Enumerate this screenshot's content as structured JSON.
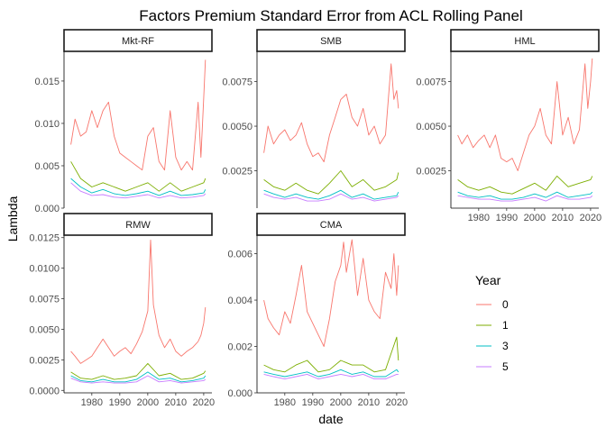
{
  "chart_data": {
    "type": "line",
    "title": "Factors Premium Standard Error from ACL Rolling Panel",
    "xlabel": "date",
    "ylabel": "Lambda",
    "x_range": [
      1972,
      2021
    ],
    "x_ticks": [
      1980,
      1990,
      2000,
      2010,
      2020
    ],
    "x_tick_labels": [
      "1980",
      "1990",
      "2000",
      "2010",
      "2020"
    ],
    "grid": false,
    "facet_scales": "free_y",
    "legend": {
      "title": "Year",
      "position": "right",
      "entries": [
        {
          "label": "0",
          "color": "#F8766D"
        },
        {
          "label": "1",
          "color": "#7CAE00"
        },
        {
          "label": "3",
          "color": "#00BFC4"
        },
        {
          "label": "5",
          "color": "#C77CFF"
        }
      ]
    },
    "panels": [
      {
        "name": "Mkt-RF",
        "ylim": [
          0.0,
          0.0185
        ],
        "y_ticks": [
          0.0,
          0.005,
          0.01,
          0.015
        ],
        "y_tick_labels": [
          "0.000",
          "0.005",
          "0.010",
          "0.015"
        ],
        "series": [
          {
            "name": "0",
            "x": [
              1972.5,
              1974,
              1976,
              1978,
              1980,
              1982,
              1984,
              1986,
              1988,
              1990,
              1992,
              1994,
              1996,
              1998,
              2000,
              2002,
              2004,
              2006,
              2008,
              2010,
              2012,
              2014,
              2016,
              2018,
              2019,
              2020,
              2020.6
            ],
            "y": [
              0.0075,
              0.0105,
              0.0085,
              0.009,
              0.0115,
              0.0095,
              0.0115,
              0.0125,
              0.0085,
              0.0065,
              0.006,
              0.0055,
              0.005,
              0.0045,
              0.0085,
              0.0095,
              0.0055,
              0.0045,
              0.0115,
              0.006,
              0.0045,
              0.0055,
              0.0045,
              0.0125,
              0.006,
              0.013,
              0.0175
            ]
          },
          {
            "name": "1",
            "x": [
              1972.5,
              1976,
              1980,
              1984,
              1988,
              1992,
              1996,
              2000,
              2004,
              2008,
              2012,
              2016,
              2020,
              2020.6
            ],
            "y": [
              0.0055,
              0.0035,
              0.0025,
              0.003,
              0.0025,
              0.002,
              0.0025,
              0.003,
              0.002,
              0.003,
              0.002,
              0.0025,
              0.003,
              0.0035
            ]
          },
          {
            "name": "3",
            "x": [
              1972.5,
              1976,
              1980,
              1984,
              1988,
              1992,
              1996,
              2000,
              2004,
              2008,
              2012,
              2016,
              2020,
              2020.6
            ],
            "y": [
              0.0035,
              0.0025,
              0.0018,
              0.0022,
              0.0017,
              0.0015,
              0.0017,
              0.002,
              0.0015,
              0.002,
              0.0015,
              0.0016,
              0.0018,
              0.0022
            ]
          },
          {
            "name": "5",
            "x": [
              1972.5,
              1976,
              1980,
              1984,
              1988,
              1992,
              1996,
              2000,
              2004,
              2008,
              2012,
              2016,
              2020,
              2020.6
            ],
            "y": [
              0.003,
              0.002,
              0.0015,
              0.0016,
              0.0013,
              0.0012,
              0.0014,
              0.0016,
              0.0012,
              0.0015,
              0.0012,
              0.0013,
              0.0015,
              0.0017
            ]
          }
        ]
      },
      {
        "name": "SMB",
        "ylim": [
          0.0004,
          0.0092
        ],
        "y_ticks": [
          0.0025,
          0.005,
          0.0075
        ],
        "y_tick_labels": [
          "0.0025",
          "0.0050",
          "0.0075"
        ],
        "series": [
          {
            "name": "0",
            "x": [
              1972.5,
              1974,
              1976,
              1978,
              1980,
              1982,
              1984,
              1986,
              1988,
              1990,
              1992,
              1994,
              1996,
              1998,
              2000,
              2002,
              2004,
              2006,
              2008,
              2010,
              2012,
              2014,
              2016,
              2018,
              2019,
              2020,
              2020.6
            ],
            "y": [
              0.0035,
              0.005,
              0.004,
              0.0045,
              0.0048,
              0.0042,
              0.0045,
              0.0052,
              0.004,
              0.0033,
              0.0035,
              0.003,
              0.0045,
              0.0055,
              0.0065,
              0.0068,
              0.0055,
              0.005,
              0.006,
              0.0045,
              0.005,
              0.004,
              0.0045,
              0.0085,
              0.0065,
              0.007,
              0.006
            ]
          },
          {
            "name": "1",
            "x": [
              1972.5,
              1976,
              1980,
              1984,
              1988,
              1992,
              1996,
              2000,
              2004,
              2008,
              2012,
              2016,
              2020,
              2020.6
            ],
            "y": [
              0.002,
              0.0016,
              0.0014,
              0.0018,
              0.0014,
              0.0012,
              0.0018,
              0.0025,
              0.0016,
              0.002,
              0.0014,
              0.0016,
              0.002,
              0.0024
            ]
          },
          {
            "name": "3",
            "x": [
              1972.5,
              1976,
              1980,
              1984,
              1988,
              1992,
              1996,
              2000,
              2004,
              2008,
              2012,
              2016,
              2020,
              2020.6
            ],
            "y": [
              0.0014,
              0.0012,
              0.001,
              0.0012,
              0.001,
              0.0009,
              0.0011,
              0.0014,
              0.001,
              0.0012,
              0.0009,
              0.001,
              0.0011,
              0.0013
            ]
          },
          {
            "name": "5",
            "x": [
              1972.5,
              1976,
              1980,
              1984,
              1988,
              1992,
              1996,
              2000,
              2004,
              2008,
              2012,
              2016,
              2020,
              2020.6
            ],
            "y": [
              0.0012,
              0.001,
              0.0009,
              0.001,
              0.0008,
              0.0008,
              0.0009,
              0.0012,
              0.0009,
              0.001,
              0.0008,
              0.0009,
              0.001,
              0.0011
            ]
          }
        ]
      },
      {
        "name": "HML",
        "ylim": [
          0.0004,
          0.0092
        ],
        "y_ticks": [
          0.0025,
          0.005,
          0.0075
        ],
        "y_tick_labels": [
          "0.0025",
          "0.0050",
          "0.0075"
        ],
        "series": [
          {
            "name": "0",
            "x": [
              1972.5,
              1974,
              1976,
              1978,
              1980,
              1982,
              1984,
              1986,
              1988,
              1990,
              1992,
              1994,
              1996,
              1998,
              2000,
              2002,
              2004,
              2006,
              2008,
              2010,
              2012,
              2014,
              2016,
              2018,
              2019,
              2020,
              2020.6
            ],
            "y": [
              0.0045,
              0.004,
              0.0045,
              0.0038,
              0.0042,
              0.0045,
              0.0038,
              0.0045,
              0.0032,
              0.003,
              0.0032,
              0.0025,
              0.0035,
              0.0045,
              0.005,
              0.006,
              0.0045,
              0.004,
              0.0075,
              0.0045,
              0.0055,
              0.004,
              0.0048,
              0.0085,
              0.006,
              0.0075,
              0.0088
            ]
          },
          {
            "name": "1",
            "x": [
              1972.5,
              1976,
              1980,
              1984,
              1988,
              1992,
              1996,
              2000,
              2004,
              2008,
              2012,
              2016,
              2020,
              2020.6
            ],
            "y": [
              0.002,
              0.0016,
              0.0014,
              0.0016,
              0.0013,
              0.0012,
              0.0015,
              0.0018,
              0.0014,
              0.0022,
              0.0016,
              0.0018,
              0.002,
              0.0022
            ]
          },
          {
            "name": "3",
            "x": [
              1972.5,
              1976,
              1980,
              1984,
              1988,
              1992,
              1996,
              2000,
              2004,
              2008,
              2012,
              2016,
              2020,
              2020.6
            ],
            "y": [
              0.0013,
              0.0011,
              0.001,
              0.0011,
              0.0009,
              0.0009,
              0.001,
              0.0012,
              0.001,
              0.0013,
              0.001,
              0.0011,
              0.0012,
              0.0013
            ]
          },
          {
            "name": "5",
            "x": [
              1972.5,
              1976,
              1980,
              1984,
              1988,
              1992,
              1996,
              2000,
              2004,
              2008,
              2012,
              2016,
              2020,
              2020.6
            ],
            "y": [
              0.0011,
              0.001,
              0.0009,
              0.0009,
              0.0008,
              0.0008,
              0.0009,
              0.001,
              0.0008,
              0.0011,
              0.0009,
              0.0009,
              0.001,
              0.0011
            ]
          }
        ]
      },
      {
        "name": "RMW",
        "ylim": [
          -0.0002,
          0.0127
        ],
        "y_ticks": [
          0.0,
          0.0025,
          0.005,
          0.0075,
          0.01,
          0.0125
        ],
        "y_tick_labels": [
          "0.0000",
          "0.0025",
          "0.0050",
          "0.0075",
          "0.0100",
          "0.0125"
        ],
        "series": [
          {
            "name": "0",
            "x": [
              1972.5,
              1974,
              1976,
              1978,
              1980,
              1982,
              1984,
              1986,
              1988,
              1990,
              1992,
              1994,
              1996,
              1998,
              2000,
              2001,
              2002,
              2004,
              2006,
              2008,
              2010,
              2012,
              2014,
              2016,
              2018,
              2019,
              2020,
              2020.6
            ],
            "y": [
              0.0032,
              0.0028,
              0.0022,
              0.0025,
              0.0028,
              0.0035,
              0.0042,
              0.0035,
              0.0028,
              0.0032,
              0.0035,
              0.003,
              0.0038,
              0.0048,
              0.0065,
              0.0123,
              0.007,
              0.0045,
              0.0035,
              0.0042,
              0.0032,
              0.0028,
              0.0032,
              0.0035,
              0.004,
              0.0045,
              0.0055,
              0.0068
            ]
          },
          {
            "name": "1",
            "x": [
              1972.5,
              1976,
              1980,
              1984,
              1988,
              1992,
              1996,
              2000,
              2004,
              2008,
              2012,
              2016,
              2020,
              2020.6
            ],
            "y": [
              0.0015,
              0.001,
              0.0009,
              0.0012,
              0.0009,
              0.001,
              0.0012,
              0.0022,
              0.0012,
              0.0014,
              0.0009,
              0.001,
              0.0014,
              0.0016
            ]
          },
          {
            "name": "3",
            "x": [
              1972.5,
              1976,
              1980,
              1984,
              1988,
              1992,
              1996,
              2000,
              2004,
              2008,
              2012,
              2016,
              2020,
              2020.6
            ],
            "y": [
              0.0012,
              0.0008,
              0.0007,
              0.0009,
              0.0007,
              0.0007,
              0.0009,
              0.0015,
              0.0009,
              0.001,
              0.0007,
              0.0008,
              0.001,
              0.0012
            ]
          },
          {
            "name": "5",
            "x": [
              1972.5,
              1976,
              1980,
              1984,
              1988,
              1992,
              1996,
              2000,
              2004,
              2008,
              2012,
              2016,
              2020,
              2020.6
            ],
            "y": [
              0.001,
              0.0007,
              0.0006,
              0.0007,
              0.0006,
              0.0006,
              0.0007,
              0.0012,
              0.0007,
              0.0008,
              0.0006,
              0.0007,
              0.0008,
              0.0009
            ]
          }
        ]
      },
      {
        "name": "CMA",
        "ylim": [
          0.0,
          0.0068
        ],
        "y_ticks": [
          0.0,
          0.002,
          0.004,
          0.006
        ],
        "y_tick_labels": [
          "0.000",
          "0.002",
          "0.004",
          "0.006"
        ],
        "series": [
          {
            "name": "0",
            "x": [
              1972.5,
              1974,
              1976,
              1978,
              1980,
              1982,
              1984,
              1986,
              1988,
              1990,
              1992,
              1994,
              1996,
              1998,
              2000,
              2001,
              2002,
              2004,
              2006,
              2008,
              2010,
              2012,
              2014,
              2016,
              2018,
              2019,
              2020,
              2020.6
            ],
            "y": [
              0.004,
              0.0032,
              0.0028,
              0.0025,
              0.0035,
              0.003,
              0.0042,
              0.0055,
              0.0035,
              0.003,
              0.0025,
              0.002,
              0.0032,
              0.0048,
              0.0055,
              0.0065,
              0.0052,
              0.0066,
              0.0042,
              0.0058,
              0.004,
              0.0035,
              0.0032,
              0.0052,
              0.0045,
              0.006,
              0.0042,
              0.0055
            ]
          },
          {
            "name": "1",
            "x": [
              1972.5,
              1976,
              1980,
              1984,
              1988,
              1992,
              1996,
              2000,
              2004,
              2008,
              2012,
              2016,
              2020,
              2020.6
            ],
            "y": [
              0.0012,
              0.001,
              0.0009,
              0.0012,
              0.0014,
              0.0009,
              0.001,
              0.0014,
              0.0012,
              0.0012,
              0.0009,
              0.001,
              0.0024,
              0.0014
            ]
          },
          {
            "name": "3",
            "x": [
              1972.5,
              1976,
              1980,
              1984,
              1988,
              1992,
              1996,
              2000,
              2004,
              2008,
              2012,
              2016,
              2020,
              2020.6
            ],
            "y": [
              0.0009,
              0.0008,
              0.0007,
              0.0008,
              0.0009,
              0.0007,
              0.0008,
              0.001,
              0.0008,
              0.0009,
              0.0007,
              0.0007,
              0.001,
              0.0009
            ]
          },
          {
            "name": "5",
            "x": [
              1972.5,
              1976,
              1980,
              1984,
              1988,
              1992,
              1996,
              2000,
              2004,
              2008,
              2012,
              2016,
              2020,
              2020.6
            ],
            "y": [
              0.0008,
              0.0007,
              0.0006,
              0.0007,
              0.0008,
              0.0006,
              0.0007,
              0.0008,
              0.0007,
              0.0008,
              0.0006,
              0.0006,
              0.0008,
              0.0008
            ]
          }
        ]
      }
    ]
  }
}
